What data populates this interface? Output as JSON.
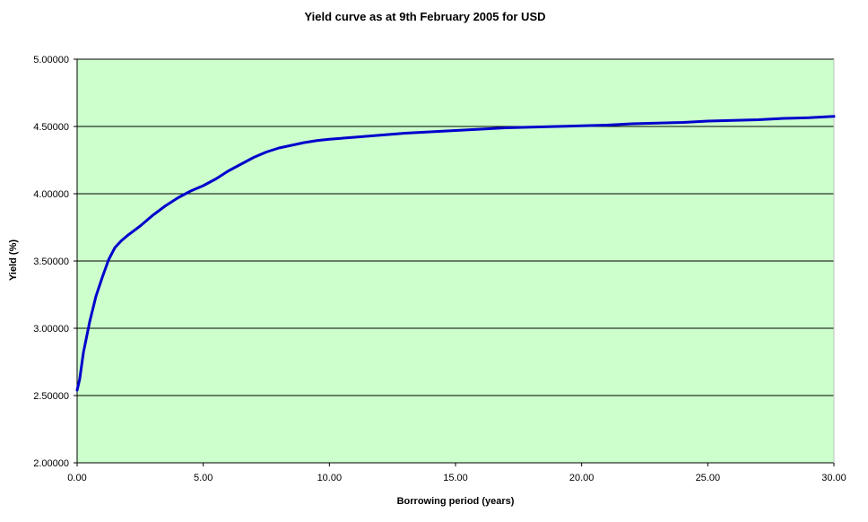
{
  "chart_data": {
    "type": "line",
    "title": "Yield curve as at 9th February 2005 for USD",
    "xlabel": "Borrowing period (years)",
    "ylabel": "Yield (%)",
    "xlim": [
      0,
      30
    ],
    "ylim": [
      2.0,
      5.0
    ],
    "x_ticks": [
      "0.00",
      "5.00",
      "10.00",
      "15.00",
      "20.00",
      "25.00",
      "30.00"
    ],
    "y_ticks": [
      "2.00000",
      "2.50000",
      "3.00000",
      "3.50000",
      "4.00000",
      "4.50000",
      "5.00000"
    ],
    "grid": "horizontal",
    "legend": "none",
    "plot_background": "#CCFFCC",
    "series": [
      {
        "color": "#0000CC",
        "x": [
          0.0,
          0.1,
          0.25,
          0.5,
          0.75,
          1.0,
          1.25,
          1.5,
          1.75,
          2.0,
          2.5,
          3.0,
          3.5,
          4.0,
          4.5,
          5.0,
          5.5,
          6.0,
          6.5,
          7.0,
          7.5,
          8.0,
          8.5,
          9.0,
          9.5,
          10.0,
          11.0,
          12.0,
          13.0,
          14.0,
          15.0,
          16.0,
          17.0,
          18.0,
          19.0,
          20.0,
          21.0,
          22.0,
          23.0,
          24.0,
          25.0,
          26.0,
          27.0,
          28.0,
          29.0,
          30.0
        ],
        "y": [
          2.54,
          2.62,
          2.82,
          3.05,
          3.24,
          3.38,
          3.51,
          3.6,
          3.65,
          3.69,
          3.76,
          3.84,
          3.91,
          3.97,
          4.02,
          4.06,
          4.11,
          4.17,
          4.22,
          4.27,
          4.31,
          4.34,
          4.36,
          4.38,
          4.395,
          4.405,
          4.42,
          4.435,
          4.45,
          4.46,
          4.47,
          4.48,
          4.49,
          4.495,
          4.5,
          4.505,
          4.51,
          4.52,
          4.525,
          4.53,
          4.54,
          4.545,
          4.55,
          4.56,
          4.565,
          4.575
        ]
      }
    ]
  }
}
